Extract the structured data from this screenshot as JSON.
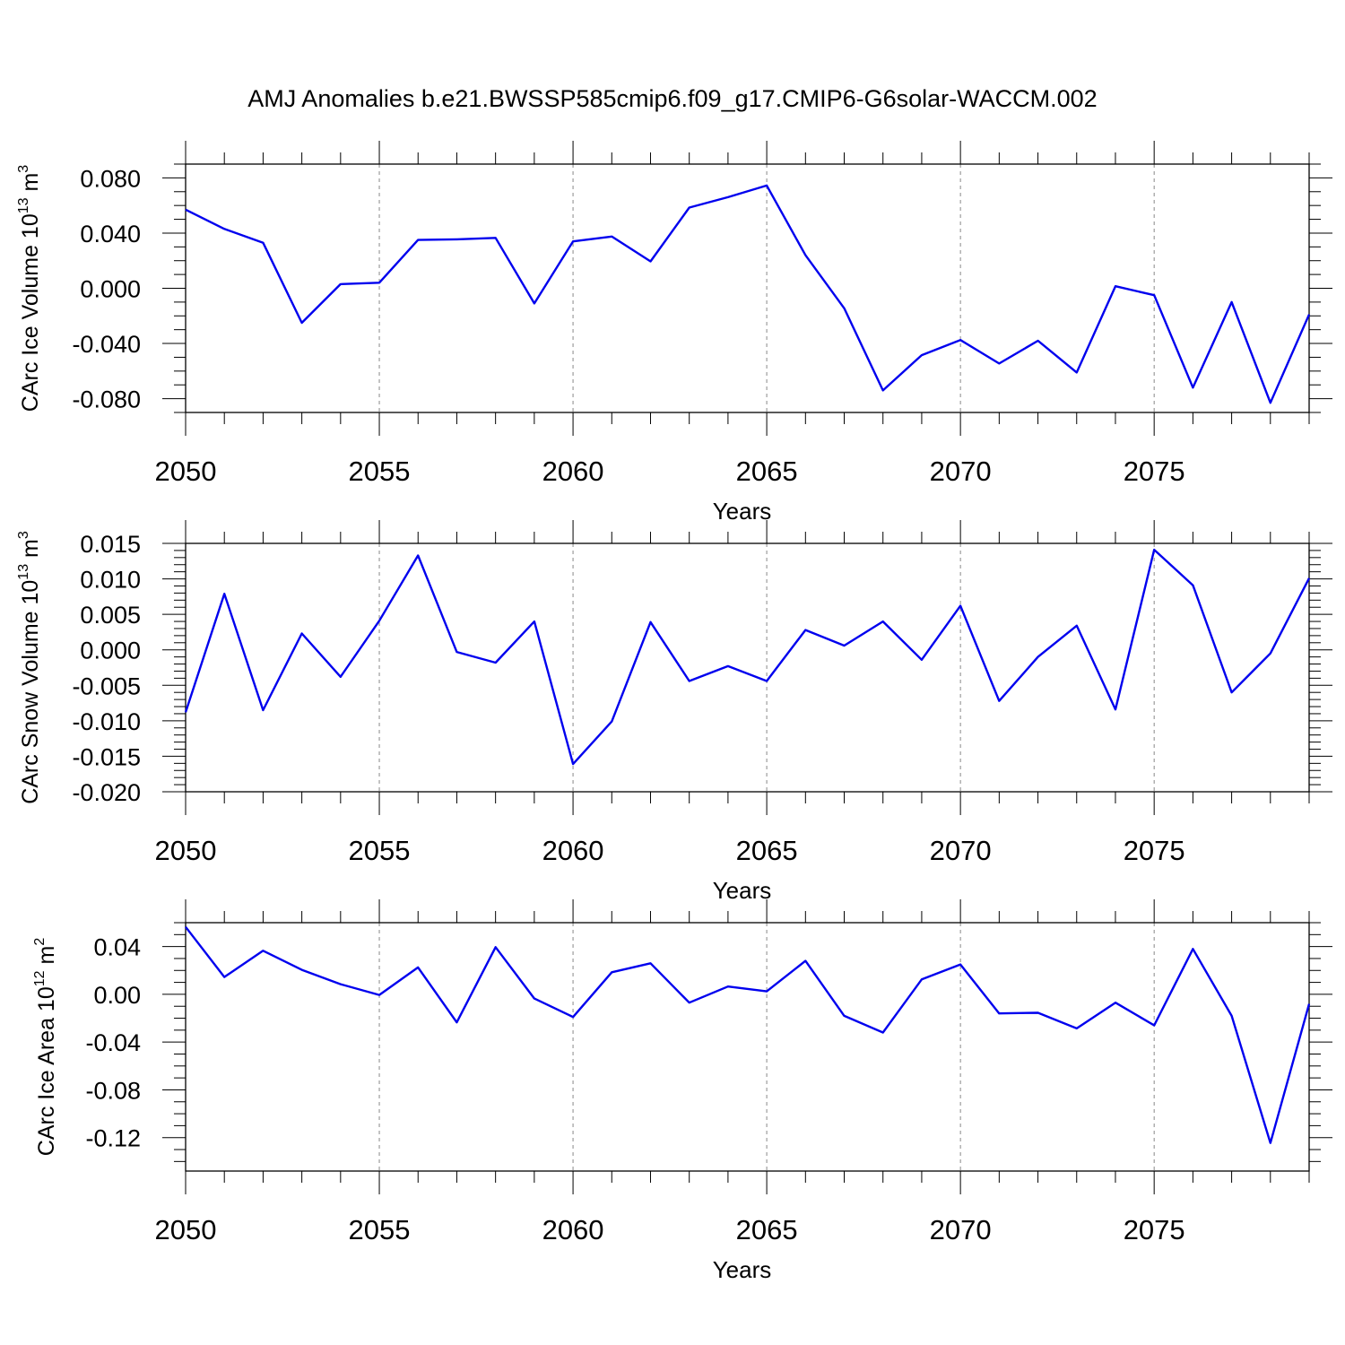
{
  "chart_data": [
    {
      "type": "line",
      "title": "AMJ Anomalies b.e21.BWSSP585cmip6.f09_g17.CMIP6-G6solar-WACCM.002",
      "xlabel": "Years",
      "ylabel": {
        "text": "CArc Ice Volume 10",
        "exp": "13",
        "unit": " m",
        "unit_exp": "3"
      },
      "xlim": [
        2050,
        2079
      ],
      "ylim": [
        -0.09,
        0.09
      ],
      "yticks": [
        -0.08,
        -0.04,
        0.0,
        0.04,
        0.08
      ],
      "ytick_labels": [
        "-0.080",
        "-0.040",
        "0.000",
        "0.040",
        "0.080"
      ],
      "yminor": 0.01,
      "xticks": [
        2050,
        2055,
        2060,
        2065,
        2070,
        2075
      ],
      "xtick_labels": [
        "2050",
        "2055",
        "2060",
        "2065",
        "2070",
        "2075"
      ],
      "grid": "vertical dashed at major x ticks",
      "color": "#0000ee",
      "x": [
        2050,
        2051,
        2052,
        2053,
        2054,
        2055,
        2056,
        2057,
        2058,
        2059,
        2060,
        2061,
        2062,
        2063,
        2064,
        2065,
        2066,
        2067,
        2068,
        2069,
        2070,
        2071,
        2072,
        2073,
        2074,
        2075,
        2076,
        2077,
        2078,
        2079
      ],
      "values": [
        0.057,
        0.043,
        0.033,
        -0.025,
        0.003,
        0.004,
        0.035,
        0.0355,
        0.0365,
        -0.011,
        0.034,
        0.0375,
        0.0195,
        0.0585,
        0.066,
        0.0745,
        0.024,
        -0.0145,
        -0.074,
        -0.0485,
        -0.0375,
        -0.0545,
        -0.038,
        -0.061,
        0.0015,
        -0.005,
        -0.072,
        -0.01,
        -0.083,
        -0.019
      ]
    },
    {
      "type": "line",
      "title": "",
      "xlabel": "Years",
      "ylabel": {
        "text": "CArc Snow Volume 10",
        "exp": "13",
        "unit": " m",
        "unit_exp": "3"
      },
      "xlim": [
        2050,
        2079
      ],
      "ylim": [
        -0.02,
        0.015
      ],
      "yticks": [
        -0.02,
        -0.015,
        -0.01,
        -0.005,
        0.0,
        0.005,
        0.01,
        0.015
      ],
      "ytick_labels": [
        "-0.020",
        "-0.015",
        "-0.010",
        "-0.005",
        "0.000",
        "0.005",
        "0.010",
        "0.015"
      ],
      "yminor": 0.001,
      "xticks": [
        2050,
        2055,
        2060,
        2065,
        2070,
        2075
      ],
      "xtick_labels": [
        "2050",
        "2055",
        "2060",
        "2065",
        "2070",
        "2075"
      ],
      "grid": "vertical dashed at major x ticks",
      "color": "#0000ee",
      "x": [
        2050,
        2051,
        2052,
        2053,
        2054,
        2055,
        2056,
        2057,
        2058,
        2059,
        2060,
        2061,
        2062,
        2063,
        2064,
        2065,
        2066,
        2067,
        2068,
        2069,
        2070,
        2071,
        2072,
        2073,
        2074,
        2075,
        2076,
        2077,
        2078,
        2079
      ],
      "values": [
        -0.0088,
        0.0079,
        -0.0085,
        0.0023,
        -0.0038,
        0.0041,
        0.0133,
        -0.0003,
        -0.0018,
        0.004,
        -0.0161,
        -0.0101,
        0.0039,
        -0.0044,
        -0.0023,
        -0.0044,
        0.0028,
        0.0006,
        0.004,
        -0.0014,
        0.0062,
        -0.0072,
        -0.001,
        0.0034,
        -0.0084,
        0.0141,
        0.0091,
        -0.006,
        -0.0005,
        0.0101
      ]
    },
    {
      "type": "line",
      "title": "",
      "xlabel": "Years",
      "ylabel": {
        "text": "CArc Ice Area 10",
        "exp": "12",
        "unit": " m",
        "unit_exp": "2"
      },
      "xlim": [
        2050,
        2079
      ],
      "ylim": [
        -0.148,
        0.06
      ],
      "yticks": [
        -0.12,
        -0.08,
        -0.04,
        0.0,
        0.04
      ],
      "ytick_labels": [
        "-0.12",
        "-0.08",
        "-0.04",
        "0.00",
        "0.04"
      ],
      "yminor": 0.01,
      "xticks": [
        2050,
        2055,
        2060,
        2065,
        2070,
        2075
      ],
      "xtick_labels": [
        "2050",
        "2055",
        "2060",
        "2065",
        "2070",
        "2075"
      ],
      "grid": "vertical dashed at major x ticks",
      "color": "#0000ee",
      "x": [
        2050,
        2051,
        2052,
        2053,
        2054,
        2055,
        2056,
        2057,
        2058,
        2059,
        2060,
        2061,
        2062,
        2063,
        2064,
        2065,
        2066,
        2067,
        2068,
        2069,
        2070,
        2071,
        2072,
        2073,
        2074,
        2075,
        2076,
        2077,
        2078,
        2079
      ],
      "values": [
        0.0565,
        0.0145,
        0.0365,
        0.0205,
        0.0085,
        -0.0005,
        0.0225,
        -0.0235,
        0.0395,
        -0.0035,
        -0.019,
        0.0185,
        0.026,
        -0.007,
        0.0065,
        0.0025,
        0.028,
        -0.018,
        -0.032,
        0.0125,
        0.025,
        -0.016,
        -0.0155,
        -0.0285,
        -0.007,
        -0.026,
        0.038,
        -0.018,
        -0.1245,
        -0.008
      ]
    }
  ]
}
